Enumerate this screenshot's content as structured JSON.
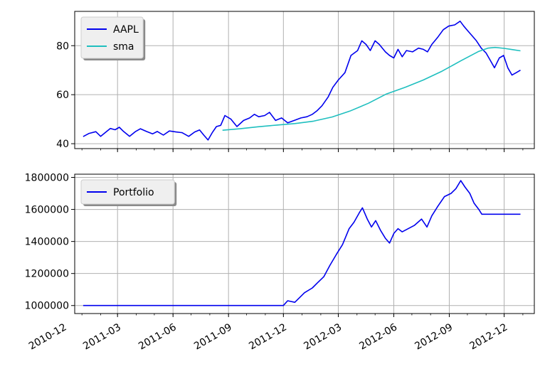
{
  "chart_data": [
    {
      "type": "line",
      "title": "",
      "xlabel": "",
      "ylabel": "",
      "ylim": [
        38,
        94
      ],
      "yticks": [
        40,
        60,
        80
      ],
      "grid": true,
      "legend_placement": "top-left",
      "series": [
        {
          "name": "AAPL",
          "color": "#0000ee",
          "points": [
            [
              "2011-01-03",
              42.9
            ],
            [
              "2011-01-13",
              44.2
            ],
            [
              "2011-01-24",
              44.9
            ],
            [
              "2011-02-01",
              43.0
            ],
            [
              "2011-02-09",
              44.6
            ],
            [
              "2011-02-17",
              46.2
            ],
            [
              "2011-02-25",
              45.7
            ],
            [
              "2011-03-04",
              46.7
            ],
            [
              "2011-03-11",
              45.0
            ],
            [
              "2011-03-21",
              43.0
            ],
            [
              "2011-03-31",
              45.0
            ],
            [
              "2011-04-08",
              46.1
            ],
            [
              "2011-04-18",
              45.0
            ],
            [
              "2011-04-28",
              44.0
            ],
            [
              "2011-05-06",
              45.0
            ],
            [
              "2011-05-16",
              43.5
            ],
            [
              "2011-05-26",
              45.2
            ],
            [
              "2011-06-06",
              44.8
            ],
            [
              "2011-06-16",
              44.5
            ],
            [
              "2011-06-27",
              43.0
            ],
            [
              "2011-07-07",
              44.8
            ],
            [
              "2011-07-15",
              45.6
            ],
            [
              "2011-07-22",
              43.5
            ],
            [
              "2011-07-29",
              41.5
            ],
            [
              "2011-08-05",
              44.5
            ],
            [
              "2011-08-12",
              47.0
            ],
            [
              "2011-08-19",
              47.5
            ],
            [
              "2011-08-26",
              51.5
            ],
            [
              "2011-09-05",
              50.0
            ],
            [
              "2011-09-15",
              47.0
            ],
            [
              "2011-09-26",
              49.5
            ],
            [
              "2011-10-06",
              50.5
            ],
            [
              "2011-10-14",
              52.0
            ],
            [
              "2011-10-21",
              51.0
            ],
            [
              "2011-10-31",
              51.5
            ],
            [
              "2011-11-08",
              52.8
            ],
            [
              "2011-11-18",
              49.5
            ],
            [
              "2011-11-28",
              50.5
            ],
            [
              "2011-12-08",
              48.5
            ],
            [
              "2011-12-19",
              49.5
            ],
            [
              "2011-12-30",
              50.5
            ],
            [
              "2012-01-09",
              51.0
            ],
            [
              "2012-01-18",
              52.0
            ],
            [
              "2012-01-26",
              53.5
            ],
            [
              "2012-02-03",
              55.5
            ],
            [
              "2012-02-13",
              59.0
            ],
            [
              "2012-02-21",
              63.0
            ],
            [
              "2012-03-01",
              66.0
            ],
            [
              "2012-03-12",
              69.0
            ],
            [
              "2012-03-22",
              76.0
            ],
            [
              "2012-04-02",
              78.0
            ],
            [
              "2012-04-09",
              82.0
            ],
            [
              "2012-04-16",
              80.5
            ],
            [
              "2012-04-23",
              78.0
            ],
            [
              "2012-05-01",
              82.0
            ],
            [
              "2012-05-08",
              80.5
            ],
            [
              "2012-05-18",
              77.5
            ],
            [
              "2012-05-25",
              76.0
            ],
            [
              "2012-06-01",
              75.0
            ],
            [
              "2012-06-08",
              78.5
            ],
            [
              "2012-06-15",
              75.5
            ],
            [
              "2012-06-22",
              78.0
            ],
            [
              "2012-07-02",
              77.5
            ],
            [
              "2012-07-12",
              79.0
            ],
            [
              "2012-07-20",
              78.5
            ],
            [
              "2012-07-27",
              77.5
            ],
            [
              "2012-08-03",
              80.5
            ],
            [
              "2012-08-13",
              83.5
            ],
            [
              "2012-08-22",
              86.5
            ],
            [
              "2012-08-31",
              88.0
            ],
            [
              "2012-09-10",
              88.5
            ],
            [
              "2012-09-19",
              90.0
            ],
            [
              "2012-09-25",
              88.0
            ],
            [
              "2012-10-02",
              86.0
            ],
            [
              "2012-10-09",
              84.0
            ],
            [
              "2012-10-16",
              82.0
            ],
            [
              "2012-10-24",
              79.0
            ],
            [
              "2012-11-01",
              77.0
            ],
            [
              "2012-11-08",
              74.0
            ],
            [
              "2012-11-15",
              71.0
            ],
            [
              "2012-11-23",
              75.0
            ],
            [
              "2012-11-30",
              76.0
            ],
            [
              "2012-12-07",
              71.0
            ],
            [
              "2012-12-14",
              68.0
            ],
            [
              "2012-12-21",
              69.0
            ],
            [
              "2012-12-28",
              70.0
            ]
          ]
        },
        {
          "name": "sma",
          "color": "#1fbfbf",
          "points": [
            [
              "2011-08-22",
              45.5
            ],
            [
              "2011-09-20",
              46.1
            ],
            [
              "2011-10-20",
              46.9
            ],
            [
              "2011-11-20",
              47.6
            ],
            [
              "2011-12-20",
              48.2
            ],
            [
              "2012-01-20",
              49.2
            ],
            [
              "2012-02-20",
              50.9
            ],
            [
              "2012-03-20",
              53.3
            ],
            [
              "2012-04-20",
              56.5
            ],
            [
              "2012-05-20",
              60.3
            ],
            [
              "2012-06-20",
              63.0
            ],
            [
              "2012-07-20",
              66.0
            ],
            [
              "2012-08-20",
              69.6
            ],
            [
              "2012-09-20",
              73.8
            ],
            [
              "2012-10-20",
              77.7
            ],
            [
              "2012-11-04",
              79.0
            ],
            [
              "2012-11-16",
              79.3
            ],
            [
              "2012-12-01",
              78.9
            ],
            [
              "2012-12-15",
              78.4
            ],
            [
              "2012-12-28",
              77.9
            ]
          ]
        }
      ]
    },
    {
      "type": "line",
      "title": "",
      "xlabel": "",
      "ylabel": "",
      "ylim": [
        950000,
        1820000
      ],
      "yticks": [
        1000000,
        1200000,
        1400000,
        1600000,
        1800000
      ],
      "grid": true,
      "legend_placement": "top-left",
      "series": [
        {
          "name": "Portfolio",
          "color": "#0000ee",
          "points": [
            [
              "2011-01-03",
              1000000
            ],
            [
              "2011-12-01",
              1000000
            ],
            [
              "2011-12-08",
              1030000
            ],
            [
              "2011-12-20",
              1020000
            ],
            [
              "2012-01-05",
              1080000
            ],
            [
              "2012-01-18",
              1110000
            ],
            [
              "2012-01-26",
              1140000
            ],
            [
              "2012-02-06",
              1180000
            ],
            [
              "2012-02-16",
              1250000
            ],
            [
              "2012-02-27",
              1320000
            ],
            [
              "2012-03-08",
              1380000
            ],
            [
              "2012-03-19",
              1480000
            ],
            [
              "2012-03-27",
              1520000
            ],
            [
              "2012-04-05",
              1580000
            ],
            [
              "2012-04-10",
              1610000
            ],
            [
              "2012-04-18",
              1540000
            ],
            [
              "2012-04-25",
              1490000
            ],
            [
              "2012-05-02",
              1530000
            ],
            [
              "2012-05-10",
              1470000
            ],
            [
              "2012-05-18",
              1420000
            ],
            [
              "2012-05-25",
              1390000
            ],
            [
              "2012-06-01",
              1450000
            ],
            [
              "2012-06-08",
              1480000
            ],
            [
              "2012-06-15",
              1460000
            ],
            [
              "2012-06-25",
              1480000
            ],
            [
              "2012-07-05",
              1500000
            ],
            [
              "2012-07-17",
              1540000
            ],
            [
              "2012-07-26",
              1490000
            ],
            [
              "2012-08-03",
              1560000
            ],
            [
              "2012-08-13",
              1620000
            ],
            [
              "2012-08-24",
              1680000
            ],
            [
              "2012-09-04",
              1700000
            ],
            [
              "2012-09-12",
              1730000
            ],
            [
              "2012-09-20",
              1780000
            ],
            [
              "2012-09-27",
              1740000
            ],
            [
              "2012-10-05",
              1700000
            ],
            [
              "2012-10-12",
              1640000
            ],
            [
              "2012-10-20",
              1600000
            ],
            [
              "2012-10-25",
              1570000
            ],
            [
              "2012-12-28",
              1570000
            ]
          ]
        }
      ]
    }
  ],
  "shared_x_axis": {
    "type": "date",
    "range": [
      "2010-12-20",
      "2013-01-20"
    ],
    "ticks": [
      {
        "date": "2010-12-01",
        "label": "2010-12"
      },
      {
        "date": "2011-03-01",
        "label": "2011-03"
      },
      {
        "date": "2011-06-01",
        "label": "2011-06"
      },
      {
        "date": "2011-09-01",
        "label": "2011-09"
      },
      {
        "date": "2011-12-01",
        "label": "2011-12"
      },
      {
        "date": "2012-03-01",
        "label": "2012-03"
      },
      {
        "date": "2012-06-01",
        "label": "2012-06"
      },
      {
        "date": "2012-09-01",
        "label": "2012-09"
      },
      {
        "date": "2012-12-01",
        "label": "2012-12"
      }
    ]
  }
}
